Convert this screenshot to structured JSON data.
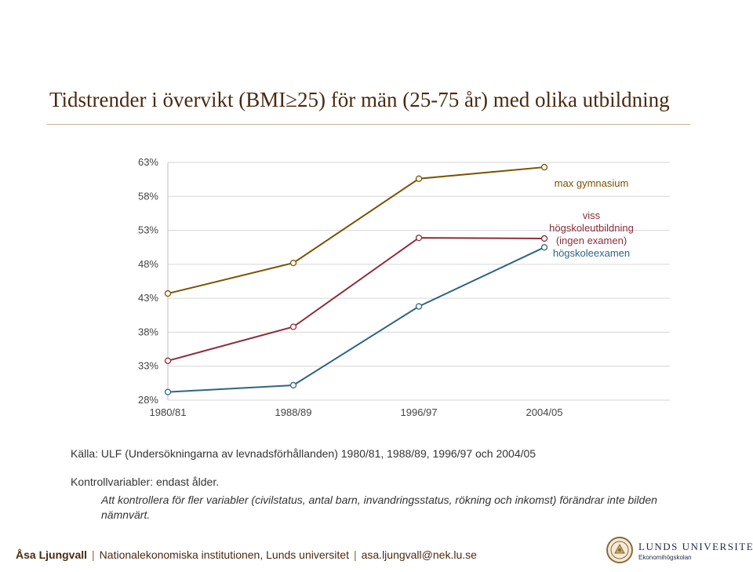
{
  "title": "Tidstrender i övervikt (BMI≥25) för män (25-75 år) med olika utbildning",
  "chart_data": {
    "type": "line",
    "categories": [
      "1980/81",
      "1988/89",
      "1996/97",
      "2004/05"
    ],
    "y_ticks": [
      "28%",
      "33%",
      "38%",
      "43%",
      "48%",
      "53%",
      "58%",
      "63%"
    ],
    "ylim": [
      28,
      63
    ],
    "grid": true,
    "legend_position": "right",
    "series": [
      {
        "name": "max gymnasium",
        "color": "#7a5200",
        "values": [
          43.7,
          48.2,
          60.6,
          62.3
        ]
      },
      {
        "name": "viss högskoleutbildning (ingen examen)",
        "legend_lines": [
          "viss",
          "högskoleutbildning",
          "(ingen examen)"
        ],
        "color": "#8b2e3a",
        "values": [
          33.8,
          38.8,
          51.9,
          51.8
        ]
      },
      {
        "name": "högskoleexamen",
        "color": "#2f6680",
        "values": [
          29.2,
          30.2,
          41.8,
          50.5
        ]
      }
    ]
  },
  "source": "Källa: ULF (Undersökningarna av levnadsförhållanden) 1980/81, 1988/89, 1996/97 och 2004/05",
  "controls": "Kontrollvariabler: endast ålder.",
  "note": "Att kontrollera för fler variabler (civilstatus, antal barn, invandringsstatus, rökning och inkomst) förändrar inte bilden nämnvärt.",
  "footer": {
    "author": "Åsa Ljungvall",
    "department": "Nationalekonomiska institutionen, Lunds universitet",
    "email": "asa.ljungvall@nek.lu.se"
  },
  "logo": {
    "name": "LUNDS UNIVERSITET",
    "sub": "Ekonomihögskolan"
  }
}
